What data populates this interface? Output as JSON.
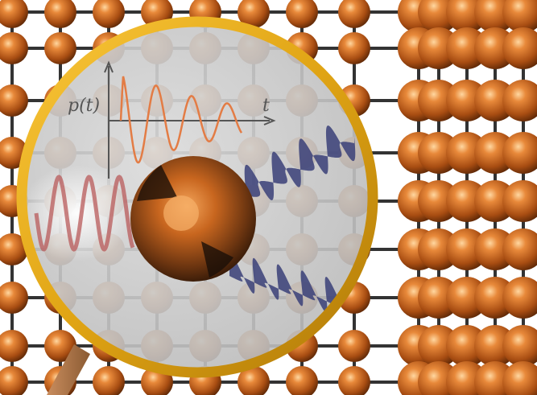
{
  "inset_plot": {
    "y_label": "p(t)",
    "x_label": "t"
  }
}
